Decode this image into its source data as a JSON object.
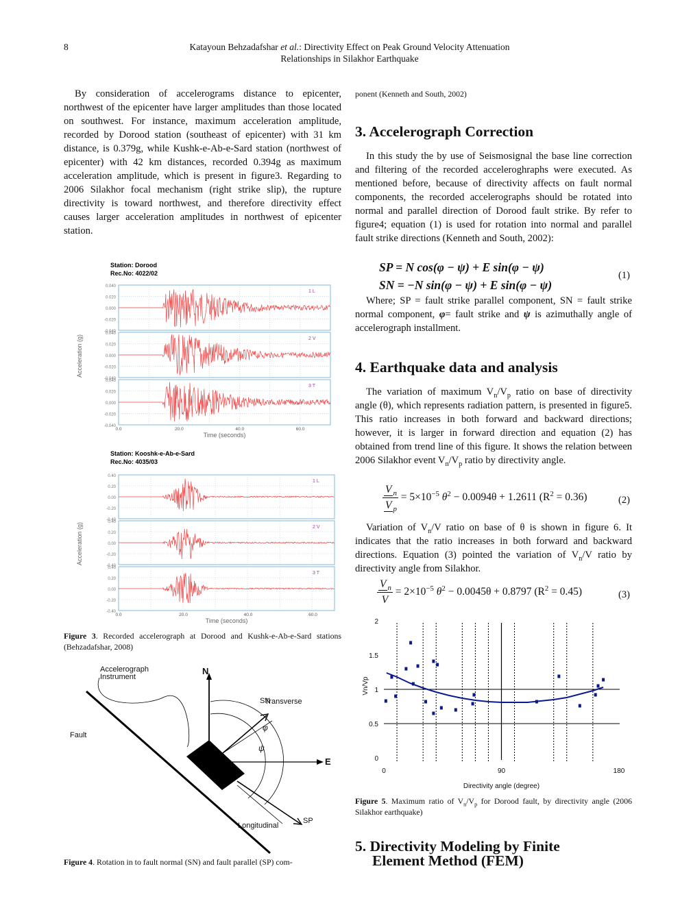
{
  "header": {
    "page_number": "8",
    "running_title_line1_author": "Katayoun Behzadafshar",
    "running_title_line1_etal": "et al.",
    "running_title_line1_rest": ":   Directivity Effect on Peak Ground Velocity Attenuation",
    "running_title_line2": "Relationships in Silakhor Earthquake"
  },
  "left_column": {
    "intro_paragraph": "By consideration of accelerograms distance to epicenter, northwest of the epicenter have larger amplitudes than those located on southwest. For instance, maximum acceleration amplitude, recorded by Dorood station (southeast of epicenter) with 31 km distance, is 0.379g, while Kushk-e-Ab-e-Sard station (northwest of epicenter) with 42 km distances, recorded 0.394g as maximum acceleration amplitude, which is present in figure3. Regarding to 2006 Silakhor focal mechanism (right strike slip), the rupture directivity is toward northwest, and therefore directivity effect causes larger acceleration amplitudes in northwest of epicenter station.",
    "figure3": {
      "caption_label": "Figure 3",
      "caption_text": ".   Recorded accelerograph at Dorood and Kushk-e-Ab-e-Sard stations (Behzadafshar, 2008)",
      "y_axis_label": "Acceleration (g)",
      "x_axis_label": "Time (seconds)",
      "x_ticks": [
        "0.0",
        "20.0",
        "40.0",
        "60.0"
      ],
      "panels": [
        {
          "station_label": "Station:",
          "station_name": "Dorood",
          "rec_label": "Rec.No:",
          "rec_no": "4022/02",
          "y_ticks": [
            "0.040",
            "0.020",
            "0.000",
            "-0.020",
            "-0.040"
          ],
          "traces": [
            "1 L",
            "2 V",
            "3 T"
          ]
        },
        {
          "station_label": "Station:",
          "station_name": "Kooshk-e-Ab-e-Sard",
          "rec_label": "Rec.No:",
          "rec_no": "4035/03",
          "y_ticks": [
            "0.40",
            "0.20",
            "0.00",
            "-0.20",
            "-0.40"
          ],
          "traces": [
            "1 L",
            "2 V",
            "3 T"
          ]
        }
      ]
    },
    "figure4": {
      "labels": {
        "instrument": "Accelerograph",
        "instrument2": "Instrument",
        "north": "N",
        "east": "E",
        "sn": "SN",
        "transverse": "Transverse",
        "phi": "φ",
        "psi": "ψ",
        "fault": "Fault",
        "longitudinal": "Longitudinal",
        "sp": "SP"
      },
      "caption_label": "Figure 4",
      "caption_text": ".   Rotation in to fault normal (SN) and fault parallel (SP) com-"
    }
  },
  "right_column": {
    "continued_caption": "ponent (Kenneth and South, 2002)",
    "section3": {
      "heading": "3. Accelerograph Correction",
      "paragraph": "In this study the by use of Seismosignal the base line correction and filtering of the recorded acceleroghraphs were executed. As mentioned before, because of directivity affects on fault normal components, the recorded accelerographs should be rotated into normal and parallel direction of Dorood fault strike. By refer to figure4; equation (1) is used for rotation into normal and parallel fault strike directions (Kenneth and South, 2002):",
      "equation1_line1": "SP = N cos(φ − ψ) + E sin(φ − ψ)",
      "equation1_line2": "SN = −N sin(φ − ψ) + E sin(φ − ψ)",
      "equation1_number": "(1)",
      "where_paragraph_part1": "Where; SP = fault strike parallel component, SN = fault strike normal component, ",
      "where_phi": "φ",
      "where_part2": "= fault strike and ",
      "where_psi": "ψ",
      "where_part3": " is azimuthally angle of accelerograph installment."
    },
    "section4": {
      "heading": "4. Earthquake data and analysis",
      "paragraph1": {
        "a": "The variation of maximum V",
        "a_sub": "n",
        "b": "/V",
        "b_sub": "p",
        "c": " ratio on base of directivity angle (θ), which represents radiation pattern, is presented in figure5. This ratio increases in both forward and backward directions; however, it is larger in forward direction and equation (2) has obtained from trend line of this figure. It shows the relation between 2006 Silakhor event V",
        "d_sub": "n",
        "e": "/V",
        "e_sub": "p",
        "f": " ratio by directivity angle."
      },
      "equation2": {
        "num": "V",
        "num_sub": "n",
        "den": "V",
        "den_sub": "p",
        "rhs_a": "= 5×10",
        "rhs_exp": "−5",
        "rhs_b": " θ",
        "rhs_b_exp": "2",
        "rhs_c": " − 0.0094θ + 1.2611  (R",
        "rhs_c_exp": "2",
        "rhs_d": " = 0.36)",
        "number": "(2)"
      },
      "paragraph2": {
        "a": "Variation of V",
        "a_sub": "n",
        "b": "/V ratio on base of θ is shown in figure 6. It indicates that the ratio increases in both forward and backward directions. Equation (3) pointed the variation of V",
        "b_sub": "n",
        "c": "/V ratio by directivity angle from Silakhor."
      },
      "equation3": {
        "num": "V",
        "num_sub": "n",
        "den": "V",
        "rhs_a": "= 2×10",
        "rhs_exp": "−5",
        "rhs_b": " θ",
        "rhs_b_exp": "2",
        "rhs_c": " − 0.0045θ + 0.8797   (R",
        "rhs_c_exp": "2",
        "rhs_d": " = 0.45)",
        "number": "(3)"
      }
    },
    "figure5": {
      "caption_label": "Figure 5",
      "caption_text_a": ".   Maximum ratio of V",
      "caption_sub_a": "n",
      "caption_text_b": "/V",
      "caption_sub_b": "p",
      "caption_text_c": " for Dorood fault, by directivity angle (2006 Silakhor earthquake)"
    },
    "section5": {
      "heading_line1": "5. Directivity Modeling by Finite",
      "heading_line2": "Element Method (FEM)"
    }
  },
  "chart_data": {
    "type": "scatter",
    "title": "",
    "xlabel": "Directivity angle (degree)",
    "ylabel": "Vn/Vp",
    "xlim": [
      0,
      180
    ],
    "ylim": [
      0,
      2
    ],
    "x_ticks": [
      0,
      90,
      180
    ],
    "y_ticks": [
      0,
      0.5,
      1,
      1.5,
      2
    ],
    "horizontal_gridlines": [
      0.5,
      1
    ],
    "vertical_solid_line": 90,
    "vertical_dotted_lines": [
      10,
      30,
      40,
      60,
      70,
      80,
      100,
      130,
      140,
      160
    ],
    "series": [
      {
        "name": "observed",
        "points": [
          [
            1.5,
            0.83
          ],
          [
            6,
            1.18
          ],
          [
            9,
            0.9
          ],
          [
            17,
            1.3
          ],
          [
            20.5,
            1.68
          ],
          [
            22.5,
            1.08
          ],
          [
            26,
            1.34
          ],
          [
            32,
            0.82
          ],
          [
            38,
            1.41
          ],
          [
            38,
            0.65
          ],
          [
            41,
            1.36
          ],
          [
            44,
            0.73
          ],
          [
            55,
            0.7
          ],
          [
            68,
            0.79
          ],
          [
            69,
            0.92
          ],
          [
            117,
            0.82
          ],
          [
            134,
            1.19
          ],
          [
            150,
            0.76
          ],
          [
            162,
            0.92
          ],
          [
            164,
            1.05
          ],
          [
            168,
            1.14
          ]
        ]
      },
      {
        "name": "trend (2nd-order polynomial)",
        "x": [
          2,
          10,
          20,
          30,
          40,
          50,
          60,
          70,
          80,
          90,
          100,
          110,
          120,
          130,
          140,
          150,
          160,
          168
        ],
        "values": [
          1.24,
          1.18,
          1.09,
          1.02,
          0.96,
          0.91,
          0.87,
          0.84,
          0.82,
          0.81,
          0.81,
          0.81,
          0.83,
          0.85,
          0.88,
          0.93,
          0.98,
          1.03
        ]
      }
    ],
    "colors": {
      "points": "#0a1a8c",
      "trend": "#0a1a8c",
      "axes": "#000000"
    }
  }
}
